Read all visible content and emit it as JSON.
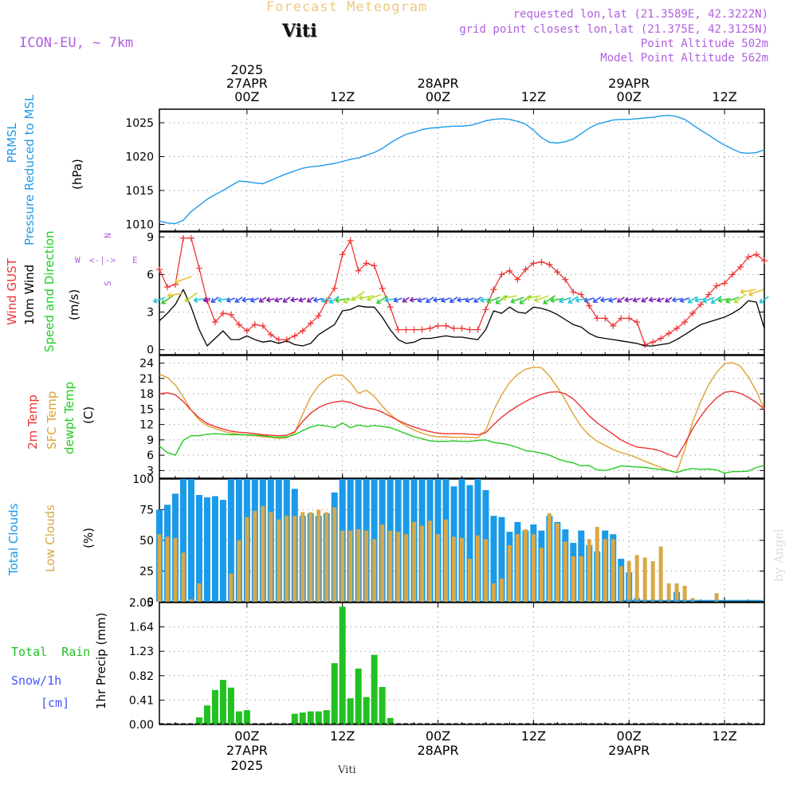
{
  "header": {
    "title": "Forecast Meteogram",
    "location": "Viti",
    "model": "ICON-EU, ~ 7km",
    "requested": "requested lon,lat (21.3589E, 42.3222N)",
    "grid_point": "grid point closest lon,lat (21.375E, 42.3125N)",
    "point_altitude": "Point Altitude 502m",
    "model_altitude": "Model Point Altitude 562m",
    "signature": "by Angel",
    "footer_location": "Viti"
  },
  "time_axis": {
    "top_labels": [
      {
        "hour": 0,
        "line1": "2025",
        "line2": "27APR",
        "line3": "00Z"
      },
      {
        "hour": 12,
        "line1": "",
        "line2": "",
        "line3": "12Z"
      },
      {
        "hour": 24,
        "line1": "",
        "line2": "28APR",
        "line3": "00Z"
      },
      {
        "hour": 36,
        "line1": "",
        "line2": "",
        "line3": "12Z"
      },
      {
        "hour": 48,
        "line1": "",
        "line2": "29APR",
        "line3": "00Z"
      },
      {
        "hour": 60,
        "line1": "",
        "line2": "",
        "line3": "12Z"
      }
    ],
    "bottom_labels": [
      {
        "hour": 0,
        "line1": "00Z",
        "line2": "27APR",
        "line3": "2025"
      },
      {
        "hour": 12,
        "line1": "12Z",
        "line2": "",
        "line3": ""
      },
      {
        "hour": 24,
        "line1": "00Z",
        "line2": "28APR",
        "line3": ""
      },
      {
        "hour": 36,
        "line1": "12Z",
        "line2": "",
        "line3": ""
      },
      {
        "hour": 48,
        "line1": "00Z",
        "line2": "29APR",
        "line3": ""
      },
      {
        "hour": 60,
        "line1": "12Z",
        "line2": "",
        "line3": ""
      }
    ]
  },
  "panels": {
    "pressure": {
      "label1": "PRMSL",
      "label2": "Pressure Reduced to MSL",
      "unit": "(hPa)"
    },
    "wind": {
      "label_gust": "Wind GUST",
      "label_wind": "10m Wind",
      "label_dir": "Speed and Direction",
      "unit": "(m/s)",
      "compass_n": "N",
      "compass_s": "S",
      "compass_w": "W",
      "compass_e": "E",
      "compass_mid": "<-|->"
    },
    "temp": {
      "label1": "2m Temp",
      "label2": "SFC Temp",
      "label3": "dewpt Temp",
      "unit": "(C)"
    },
    "clouds": {
      "label1": "Total Clouds",
      "label2": "Low Clouds",
      "unit": "(%)"
    },
    "precip": {
      "label1": "Total  Rain",
      "label2": "Snow/1h",
      "label3": "[cm]",
      "axis_label": "1hr Precip (mm)"
    }
  },
  "colors": {
    "pressure": "#1f9be8",
    "gust": "#ee3333",
    "wind": "#000000",
    "temp2m": "#ee3333",
    "sfc": "#e0a030",
    "dewpt": "#22cc22",
    "total_clouds": "#1a9ae8",
    "low_clouds": "#d8a848",
    "rain": "#22c022",
    "snow": "#4455ff",
    "purple": "#b060e0",
    "title": "#f0c880"
  },
  "chart_data": [
    {
      "type": "line",
      "name": "pressure",
      "xunit": "hours from 2025-04-27 00Z",
      "ylim": [
        1009,
        1027
      ],
      "yticks": [
        1010,
        1015,
        1020,
        1025
      ],
      "x": [
        -11,
        -10,
        -9,
        -8,
        -7,
        -6,
        -5,
        -4,
        -3,
        -2,
        -1,
        0,
        1,
        2,
        3,
        4,
        5,
        6,
        7,
        8,
        9,
        10,
        11,
        12,
        13,
        14,
        15,
        16,
        17,
        18,
        19,
        20,
        21,
        22,
        23,
        24,
        25,
        26,
        27,
        28,
        29,
        30,
        31,
        32,
        33,
        34,
        35,
        36,
        37,
        38,
        39,
        40,
        41,
        42,
        43,
        44,
        45,
        46,
        47,
        48,
        49,
        50,
        51,
        52,
        53,
        54,
        55,
        56,
        57,
        58,
        59,
        60,
        61,
        62,
        63,
        64,
        65
      ],
      "series": [
        {
          "values": [
            1010.5,
            1010.2,
            1010.1,
            1010.6,
            1011.9,
            1012.8,
            1013.7,
            1014.4,
            1015.0,
            1015.7,
            1016.4,
            1016.3,
            1016.1,
            1016.0,
            1016.5,
            1017.0,
            1017.5,
            1017.9,
            1018.3,
            1018.5,
            1018.6,
            1018.8,
            1019.0,
            1019.3,
            1019.6,
            1019.8,
            1020.2,
            1020.6,
            1021.2,
            1022.0,
            1022.7,
            1023.3,
            1023.6,
            1024.0,
            1024.2,
            1024.3,
            1024.4,
            1024.5,
            1024.5,
            1024.6,
            1024.9,
            1025.3,
            1025.5,
            1025.6,
            1025.5,
            1025.2,
            1024.8,
            1023.9,
            1022.8,
            1022.1,
            1022.0,
            1022.2,
            1022.6,
            1023.4,
            1024.2,
            1024.8,
            1025.1,
            1025.4,
            1025.5,
            1025.5,
            1025.6,
            1025.7,
            1025.8,
            1026.0,
            1026.1,
            1025.9,
            1025.5,
            1024.7,
            1023.9,
            1023.2,
            1022.4,
            1021.7,
            1021.1,
            1020.6,
            1020.5,
            1020.6,
            1021.0
          ]
        }
      ]
    },
    {
      "type": "line",
      "name": "wind",
      "ylim": [
        -0.4,
        9.4
      ],
      "yticks": [
        0,
        3,
        6,
        9
      ],
      "x": [
        -11,
        -10,
        -9,
        -8,
        -7,
        -6,
        -5,
        -4,
        -3,
        -2,
        -1,
        0,
        1,
        2,
        3,
        4,
        5,
        6,
        7,
        8,
        9,
        10,
        11,
        12,
        13,
        14,
        15,
        16,
        17,
        18,
        19,
        20,
        21,
        22,
        23,
        24,
        25,
        26,
        27,
        28,
        29,
        30,
        31,
        32,
        33,
        34,
        35,
        36,
        37,
        38,
        39,
        40,
        41,
        42,
        43,
        44,
        45,
        46,
        47,
        48,
        49,
        50,
        51,
        52,
        53,
        54,
        55,
        56,
        57,
        58,
        59,
        60,
        61,
        62,
        63,
        64,
        65
      ],
      "series": [
        {
          "name": "Wind GUST",
          "values": [
            6.4,
            5.0,
            5.2,
            8.9,
            8.9,
            6.5,
            3.9,
            2.2,
            2.9,
            2.8,
            2.0,
            1.5,
            2.0,
            1.9,
            1.2,
            0.8,
            0.8,
            1.1,
            1.5,
            2.1,
            2.7,
            3.9,
            4.9,
            7.6,
            8.7,
            6.3,
            6.9,
            6.7,
            4.9,
            3.4,
            1.6,
            1.6,
            1.6,
            1.6,
            1.7,
            1.9,
            1.9,
            1.7,
            1.7,
            1.6,
            1.6,
            3.2,
            4.8,
            6.0,
            6.3,
            5.6,
            6.4,
            6.9,
            7.0,
            6.8,
            6.2,
            5.6,
            4.6,
            4.4,
            3.5,
            2.5,
            2.5,
            1.9,
            2.5,
            2.5,
            2.2,
            0.4,
            0.6,
            0.9,
            1.3,
            1.7,
            2.2,
            2.9,
            3.6,
            4.4,
            5.1,
            5.3,
            6.0,
            6.6,
            7.4,
            7.6,
            7.1
          ]
        },
        {
          "name": "10m Wind",
          "values": [
            2.3,
            2.9,
            3.6,
            4.8,
            3.4,
            1.6,
            0.3,
            0.9,
            1.5,
            0.8,
            0.8,
            1.1,
            0.8,
            0.6,
            0.7,
            0.5,
            0.7,
            0.4,
            0.3,
            0.5,
            1.2,
            1.6,
            2.0,
            3.1,
            3.2,
            3.5,
            3.4,
            3.4,
            2.6,
            1.6,
            0.8,
            0.5,
            0.6,
            0.9,
            0.9,
            1.0,
            1.1,
            1.0,
            1.0,
            0.9,
            0.8,
            1.6,
            3.1,
            2.9,
            3.4,
            3.0,
            2.9,
            3.4,
            3.3,
            3.1,
            2.8,
            2.4,
            2.0,
            1.8,
            1.3,
            1.0,
            0.9,
            0.8,
            0.7,
            0.6,
            0.5,
            0.3,
            0.3,
            0.4,
            0.5,
            0.8,
            1.2,
            1.6,
            2.0,
            2.2,
            2.4,
            2.6,
            2.9,
            3.3,
            3.9,
            3.8,
            1.7
          ]
        }
      ]
    },
    {
      "type": "line",
      "name": "temperature",
      "ylim": [
        1.5,
        25.5
      ],
      "yticks": [
        3,
        6,
        9,
        12,
        15,
        18,
        21,
        24
      ],
      "x": [
        -11,
        -10,
        -9,
        -8,
        -7,
        -6,
        -5,
        -4,
        -3,
        -2,
        -1,
        0,
        1,
        2,
        3,
        4,
        5,
        6,
        7,
        8,
        9,
        10,
        11,
        12,
        13,
        14,
        15,
        16,
        17,
        18,
        19,
        20,
        21,
        22,
        23,
        24,
        25,
        26,
        27,
        28,
        29,
        30,
        31,
        32,
        33,
        34,
        35,
        36,
        37,
        38,
        39,
        40,
        41,
        42,
        43,
        44,
        45,
        46,
        47,
        48,
        49,
        50,
        51,
        52,
        53,
        54,
        55,
        56,
        57,
        58,
        59,
        60,
        61,
        62,
        63,
        64,
        65
      ],
      "series": [
        {
          "name": "2m Temp",
          "values": [
            18.0,
            18.2,
            17.8,
            16.5,
            14.8,
            13.3,
            12.2,
            11.6,
            11.1,
            10.7,
            10.5,
            10.4,
            10.2,
            10.0,
            9.9,
            9.8,
            9.9,
            10.6,
            12.6,
            14.2,
            15.3,
            16.0,
            16.4,
            16.6,
            16.3,
            15.7,
            15.2,
            15.0,
            14.4,
            13.6,
            12.8,
            12.1,
            11.5,
            11.0,
            10.6,
            10.3,
            10.2,
            10.2,
            10.2,
            10.1,
            10.0,
            10.4,
            12.0,
            13.4,
            14.6,
            15.6,
            16.5,
            17.3,
            17.9,
            18.3,
            18.4,
            18.0,
            17.0,
            15.4,
            13.7,
            12.3,
            11.2,
            10.1,
            9.0,
            8.2,
            7.6,
            7.4,
            7.2,
            6.8,
            6.1,
            5.6,
            8.2,
            11.2,
            13.6,
            15.6,
            17.2,
            18.3,
            18.5,
            18.1,
            17.3,
            16.3,
            15.0
          ]
        },
        {
          "name": "SFC Temp",
          "values": [
            21.8,
            21.2,
            19.7,
            17.4,
            14.8,
            12.9,
            11.8,
            11.2,
            10.7,
            10.3,
            10.1,
            9.9,
            9.8,
            9.6,
            9.5,
            9.3,
            9.4,
            10.4,
            14.0,
            17.4,
            19.6,
            21.0,
            21.7,
            21.6,
            20.2,
            18.1,
            18.7,
            17.5,
            15.6,
            14.0,
            12.7,
            11.7,
            10.9,
            10.3,
            9.8,
            9.6,
            9.6,
            9.5,
            9.5,
            9.5,
            9.4,
            10.9,
            14.8,
            17.8,
            20.2,
            21.8,
            22.8,
            23.2,
            23.1,
            21.5,
            19.3,
            16.8,
            14.0,
            11.6,
            9.9,
            8.7,
            7.9,
            7.1,
            6.5,
            6.1,
            5.5,
            4.8,
            4.2,
            3.6,
            3.0,
            2.6,
            7.0,
            12.5,
            16.5,
            19.8,
            22.2,
            23.9,
            24.1,
            23.4,
            21.3,
            18.5,
            15.0
          ]
        },
        {
          "name": "dewpt Temp",
          "values": [
            7.8,
            6.5,
            6.0,
            8.9,
            9.8,
            9.8,
            10.1,
            10.2,
            10.1,
            10.0,
            10.0,
            10.0,
            9.9,
            9.8,
            9.6,
            9.5,
            9.6,
            10.0,
            10.8,
            11.5,
            11.9,
            11.7,
            11.4,
            12.3,
            11.4,
            11.9,
            11.6,
            11.8,
            11.6,
            11.4,
            10.8,
            10.2,
            9.6,
            9.2,
            8.8,
            8.7,
            8.7,
            8.8,
            8.7,
            8.7,
            8.9,
            9.0,
            8.5,
            8.3,
            8.0,
            7.5,
            6.9,
            6.7,
            6.4,
            6.0,
            5.3,
            4.8,
            4.5,
            3.9,
            4.0,
            3.1,
            3.0,
            3.4,
            3.9,
            3.8,
            3.7,
            3.6,
            3.4,
            3.2,
            3.0,
            2.6,
            3.1,
            3.4,
            3.2,
            3.3,
            3.1,
            2.5,
            2.8,
            2.8,
            2.9,
            3.6,
            4.0
          ]
        }
      ]
    },
    {
      "type": "bar",
      "name": "clouds",
      "ylim": [
        0,
        100
      ],
      "yticks": [
        0,
        25,
        50,
        75,
        100
      ],
      "x": [
        -11,
        -10,
        -9,
        -8,
        -7,
        -6,
        -5,
        -4,
        -3,
        -2,
        -1,
        0,
        1,
        2,
        3,
        4,
        5,
        6,
        7,
        8,
        9,
        10,
        11,
        12,
        13,
        14,
        15,
        16,
        17,
        18,
        19,
        20,
        21,
        22,
        23,
        24,
        25,
        26,
        27,
        28,
        29,
        30,
        31,
        32,
        33,
        34,
        35,
        36,
        37,
        38,
        39,
        40,
        41,
        42,
        43,
        44,
        45,
        46,
        47,
        48,
        49,
        50,
        51,
        52,
        53,
        54,
        55,
        56,
        57,
        58,
        59,
        60,
        61,
        62,
        63,
        64,
        65
      ],
      "series": [
        {
          "name": "Total Clouds",
          "values": [
            75,
            79,
            88,
            100,
            100,
            87,
            85,
            86,
            83,
            100,
            100,
            100,
            100,
            100,
            100,
            100,
            100,
            92,
            70,
            72,
            70,
            72,
            89,
            100,
            100,
            100,
            100,
            100,
            100,
            100,
            100,
            100,
            100,
            100,
            100,
            100,
            100,
            94,
            100,
            95,
            100,
            91,
            70,
            69,
            57,
            65,
            58,
            63,
            58,
            70,
            65,
            59,
            48,
            58,
            46,
            41,
            58,
            55,
            35,
            24,
            3,
            0,
            0,
            0,
            0,
            8,
            0,
            0,
            0,
            0,
            0,
            0,
            0,
            0,
            0,
            0,
            0
          ]
        },
        {
          "name": "Low Clouds",
          "values": [
            55,
            53,
            52,
            40,
            2,
            15,
            0,
            0,
            0,
            23,
            50,
            69,
            74,
            78,
            73,
            67,
            70,
            70,
            73,
            73,
            75,
            73,
            77,
            58,
            58,
            59,
            58,
            51,
            63,
            58,
            57,
            55,
            65,
            62,
            66,
            55,
            67,
            53,
            52,
            35,
            54,
            51,
            15,
            19,
            46,
            55,
            59,
            55,
            44,
            72,
            64,
            49,
            37,
            37,
            51,
            61,
            51,
            51,
            29,
            33,
            38,
            36,
            33,
            45,
            15,
            15,
            13,
            3,
            0,
            0,
            7,
            0,
            0,
            0,
            0,
            0,
            0
          ]
        }
      ]
    },
    {
      "type": "bar",
      "name": "precipitation",
      "ylabel": "1hr Precip (mm)",
      "ylim": [
        0,
        2.05
      ],
      "yticks": [
        0,
        0.41,
        0.82,
        1.23,
        1.64,
        2.05
      ],
      "x": [
        -6,
        -5,
        -4,
        -3,
        -2,
        -1,
        0,
        1,
        6,
        7,
        8,
        9,
        10,
        11,
        12,
        13,
        14,
        15,
        16,
        17,
        18
      ],
      "series": [
        {
          "name": "Total Rain",
          "values": [
            0.12,
            0.32,
            0.58,
            0.75,
            0.62,
            0.22,
            0.24,
            0.0,
            0.18,
            0.2,
            0.22,
            0.22,
            0.24,
            1.03,
            1.98,
            0.44,
            0.94,
            0.46,
            1.17,
            0.63,
            0.11
          ]
        }
      ]
    }
  ]
}
